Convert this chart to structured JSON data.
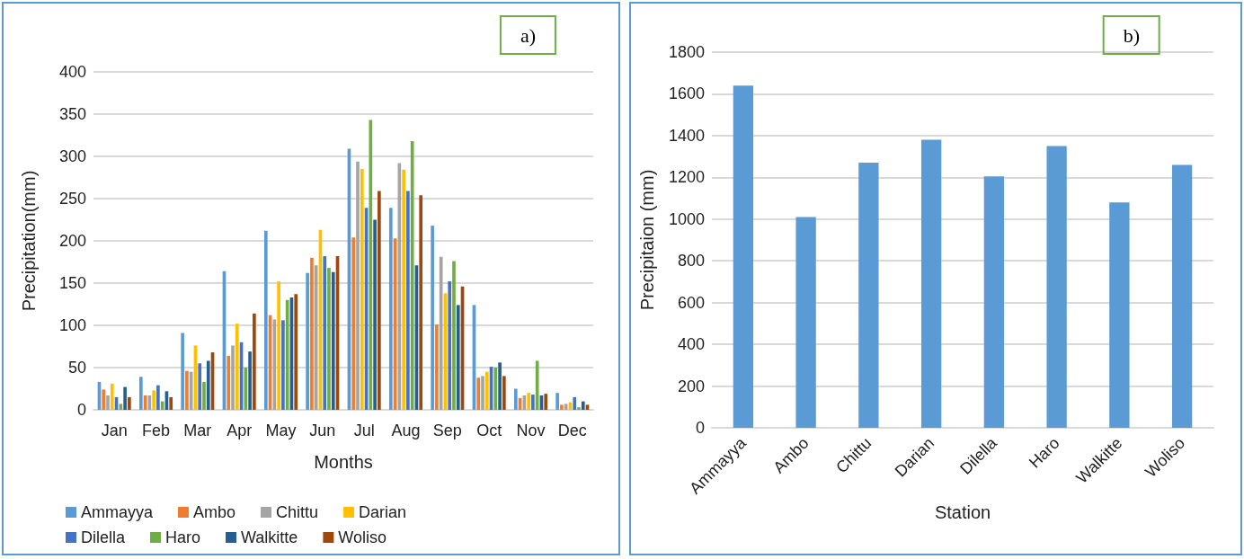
{
  "chart_data": [
    {
      "type": "bar",
      "title": "a)",
      "xlabel": "Months",
      "ylabel": "Precipitation(mm)",
      "categories": [
        "Jan",
        "Feb",
        "Mar",
        "Apr",
        "May",
        "Jun",
        "Jul",
        "Aug",
        "Sep",
        "Oct",
        "Nov",
        "Dec"
      ],
      "series": [
        {
          "name": "Ammayya",
          "color": "#5b9bd5",
          "values": [
            33,
            39,
            91,
            164,
            212,
            162,
            309,
            239,
            218,
            124,
            25,
            20
          ]
        },
        {
          "name": "Ambo",
          "color": "#ed7d31",
          "values": [
            24,
            17,
            46,
            64,
            112,
            180,
            204,
            203,
            101,
            38,
            14,
            6
          ]
        },
        {
          "name": "Chittu",
          "color": "#a5a5a5",
          "values": [
            17,
            17,
            45,
            76,
            107,
            171,
            294,
            292,
            181,
            40,
            17,
            7
          ]
        },
        {
          "name": "Darian",
          "color": "#ffc000",
          "values": [
            31,
            23,
            76,
            102,
            152,
            213,
            285,
            284,
            138,
            45,
            20,
            9
          ]
        },
        {
          "name": "Dilella",
          "color": "#4472c4",
          "values": [
            15,
            29,
            55,
            80,
            106,
            182,
            239,
            259,
            152,
            51,
            18,
            15
          ]
        },
        {
          "name": "Haro",
          "color": "#70ad47",
          "values": [
            7,
            10,
            33,
            50,
            130,
            168,
            343,
            318,
            176,
            50,
            58,
            3
          ]
        },
        {
          "name": "Walkitte",
          "color": "#255e91",
          "values": [
            27,
            22,
            58,
            69,
            133,
            163,
            225,
            171,
            124,
            56,
            17,
            10
          ]
        },
        {
          "name": "Woliso",
          "color": "#9e480e",
          "values": [
            15,
            15,
            68,
            114,
            137,
            182,
            259,
            254,
            146,
            40,
            19,
            6
          ]
        }
      ],
      "ylim": [
        0,
        400
      ],
      "yticks": [
        0,
        50,
        100,
        150,
        200,
        250,
        300,
        350,
        400
      ],
      "grid": "y",
      "legend": "bottom"
    },
    {
      "type": "bar",
      "title": "b)",
      "xlabel": "Station",
      "ylabel": "Precipitaion (mm)",
      "categories": [
        "Ammayya",
        "Ambo",
        "Chittu",
        "Darian",
        "Dilella",
        "Haro",
        "Walkitte",
        "Woliso"
      ],
      "series": [
        {
          "color": "#5b9bd5",
          "values": [
            1640,
            1010,
            1270,
            1380,
            1205,
            1350,
            1080,
            1260
          ]
        }
      ],
      "ylim": [
        0,
        1800
      ],
      "yticks": [
        0,
        200,
        400,
        600,
        800,
        1000,
        1200,
        1400,
        1600,
        1800
      ],
      "grid": "y"
    }
  ]
}
